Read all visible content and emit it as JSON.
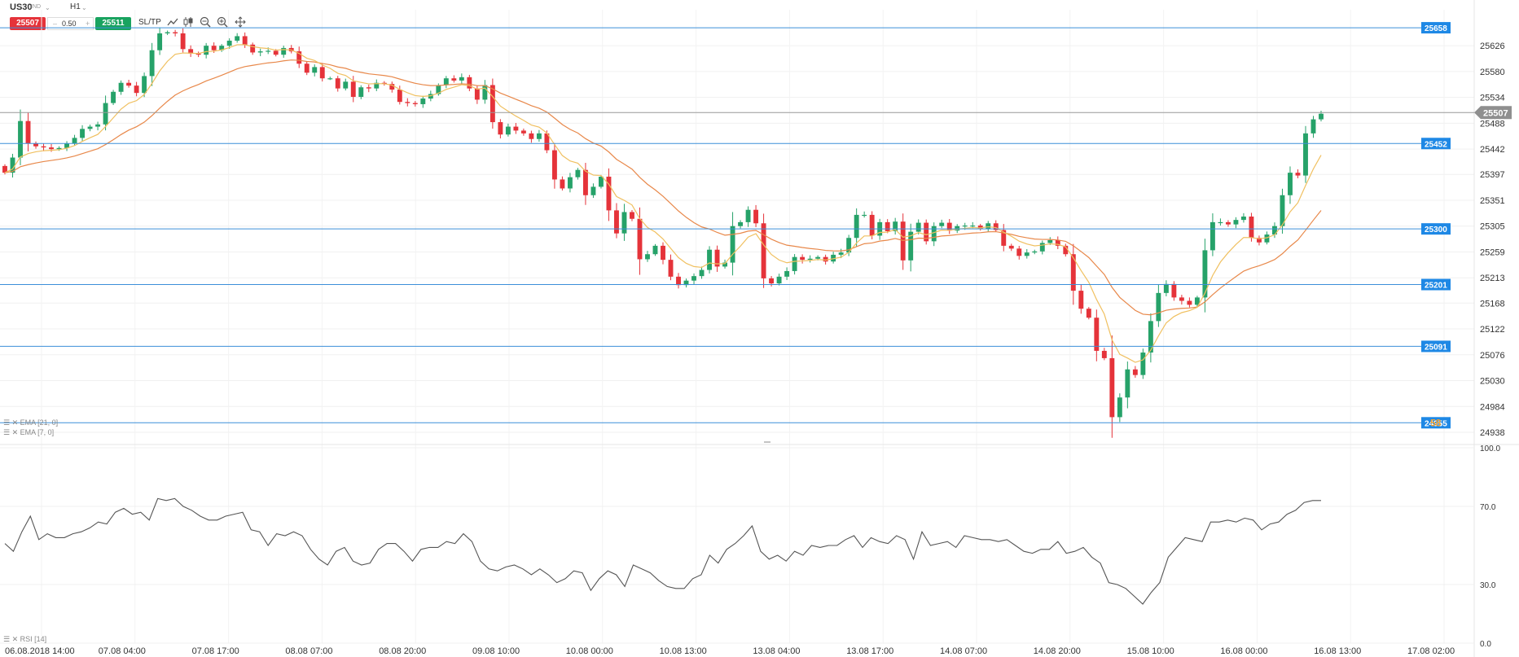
{
  "toolbar": {
    "symbol": "US30",
    "symbol_sub": "IND",
    "timeframe": "H1",
    "sell_price": "25507",
    "spread": "0.50",
    "spread_minus": "–",
    "spread_plus": "+",
    "buy_price": "25511",
    "sltp_label": "SL/TP",
    "icons": [
      "line-chart-icon",
      "candlestick-icon",
      "zoom-out-icon",
      "zoom-in-icon",
      "move-icon"
    ]
  },
  "indicators": {
    "ema21_label": "EMA [21, 0]",
    "ema7_label": "EMA [7, 0]",
    "rsi_label": "RSI [14]"
  },
  "overlay_text": "58",
  "colors": {
    "bull": "#26a269",
    "bear": "#e5333a",
    "ema7": "#f0c060",
    "ema21": "#e8884a",
    "hline": "#3b8fd9",
    "price_line": "#999999",
    "rsi": "#555555"
  },
  "chart_data": [
    {
      "type": "candlestick",
      "title": "",
      "timeframe": "H1",
      "xlabel": "",
      "ylabel": "",
      "y_ticks": [
        25626,
        25580,
        25534,
        25488,
        25442,
        25397,
        25351,
        25305,
        25259,
        25213,
        25168,
        25122,
        25076,
        25030,
        24984,
        24938
      ],
      "ylim": [
        24925,
        25690
      ],
      "x_tick_labels": [
        "06.08.2018 14:00",
        "07.08 04:00",
        "07.08 17:00",
        "08.08 07:00",
        "08.08 20:00",
        "09.08 10:00",
        "10.08 00:00",
        "10.08 13:00",
        "13.08 04:00",
        "13.08 17:00",
        "14.08 07:00",
        "14.08 20:00",
        "15.08 10:00",
        "16.08 00:00",
        "16.08 13:00",
        "17.08 02:00"
      ],
      "horizontal_levels": [
        25658,
        25452,
        25300,
        25201,
        25091,
        24955
      ],
      "current_price": 25507,
      "grid": true,
      "close": [
        25400,
        25427,
        25492,
        25452,
        25447,
        25445,
        25442,
        25444,
        25452,
        25462,
        25478,
        25482,
        25486,
        25524,
        25544,
        25560,
        25555,
        25542,
        25572,
        25618,
        25648,
        25650,
        25648,
        25620,
        25612,
        25610,
        25626,
        25618,
        25626,
        25635,
        25643,
        25628,
        25614,
        25616,
        25617,
        25610,
        25622,
        25616,
        25594,
        25578,
        25588,
        25568,
        25568,
        25550,
        25562,
        25535,
        25552,
        25550,
        25560,
        25558,
        25548,
        25526,
        25524,
        25522,
        25532,
        25540,
        25556,
        25568,
        25564,
        25570,
        25550,
        25530,
        25556,
        25490,
        25468,
        25482,
        25475,
        25470,
        25460,
        25470,
        25440,
        25388,
        25372,
        25392,
        25405,
        25360,
        25375,
        25393,
        25333,
        25292,
        25330,
        25318,
        25246,
        25255,
        25270,
        25245,
        25215,
        25200,
        25208,
        25216,
        25227,
        25263,
        25233,
        25240,
        25305,
        25312,
        25334,
        25310,
        25212,
        25203,
        25215,
        25225,
        25250,
        25245,
        25247,
        25250,
        25242,
        25254,
        25258,
        25284,
        25325,
        25325,
        25288,
        25312,
        25296,
        25313,
        25244,
        25295,
        25311,
        25278,
        25305,
        25311,
        25297,
        25305,
        25306,
        25306,
        25300,
        25310,
        25298,
        25270,
        25265,
        25252,
        25258,
        25260,
        25275,
        25280,
        25270,
        25255,
        25190,
        25158,
        25142,
        25083,
        25070,
        24965,
        25000,
        25050,
        25040,
        25080,
        25136,
        25186,
        25202,
        25178,
        25172,
        25165,
        25178,
        25262,
        25312,
        25312,
        25308,
        25316,
        25322,
        25284,
        25276,
        25290,
        25305,
        25360,
        25400,
        25395,
        25470,
        25495,
        25505
      ]
    },
    {
      "type": "line",
      "title": "RSI [14]",
      "xlabel": "",
      "ylabel": "",
      "y_ticks": [
        100.0,
        70.0,
        30.0,
        0.0
      ],
      "ylim": [
        0,
        100
      ],
      "grid": true,
      "series": [
        {
          "name": "RSI [14]",
          "values": [
            51,
            47,
            57,
            65,
            53,
            56,
            54,
            54,
            56,
            57,
            59,
            62,
            61,
            67,
            69,
            66,
            67,
            63,
            74,
            73,
            74,
            70,
            68,
            65,
            63,
            63,
            65,
            66,
            67,
            58,
            57,
            50,
            56,
            55,
            57,
            55,
            48,
            43,
            40,
            47,
            49,
            42,
            40,
            41,
            48,
            51,
            51,
            47,
            42,
            48,
            49,
            49,
            52,
            51,
            56,
            52,
            42,
            38,
            37,
            39,
            40,
            38,
            35,
            38,
            35,
            31,
            33,
            37,
            36,
            27,
            33,
            37,
            35,
            29,
            40,
            38,
            36,
            32,
            29,
            28,
            28,
            33,
            35,
            45,
            41,
            48,
            51,
            55,
            60,
            47,
            43,
            45,
            42,
            47,
            45,
            50,
            49,
            50,
            50,
            53,
            55,
            49,
            54,
            52,
            51,
            55,
            53,
            43,
            57,
            50,
            51,
            52,
            49,
            55,
            54,
            53,
            53,
            52,
            53,
            50,
            47,
            46,
            48,
            48,
            52,
            46,
            47,
            49,
            44,
            41,
            31,
            30,
            28,
            24,
            20,
            26,
            31,
            44,
            49,
            54,
            53,
            52,
            62,
            62,
            63,
            62,
            64,
            63,
            58,
            61,
            62,
            66,
            68,
            72,
            73,
            73
          ]
        }
      ]
    }
  ]
}
